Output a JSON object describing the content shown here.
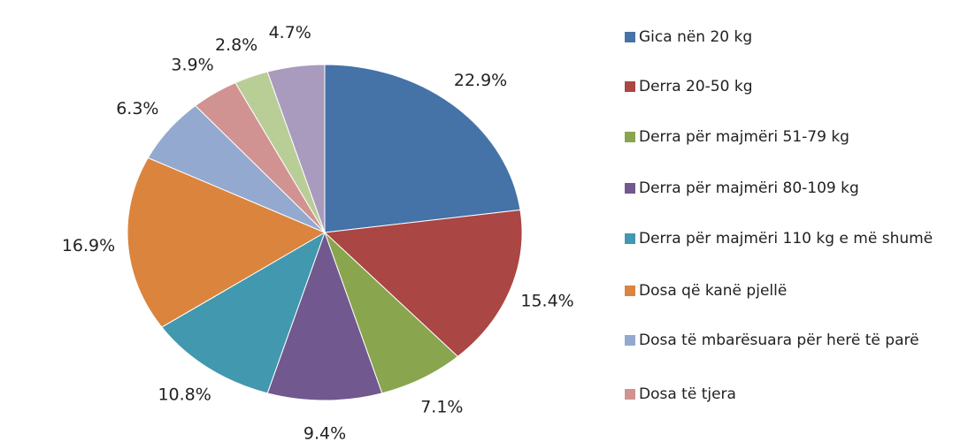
{
  "chart_data": {
    "type": "pie",
    "categories": [
      "Gica  nën 20 kg",
      "Derra  20-50 kg",
      "Derra për majmëri  51-79 kg",
      "Derra për majmëri  80-109 kg",
      "Derra për majmëri  110 kg e më shumë",
      "Dosa që kanë pjellë",
      "Dosa të mbarësuara për herë të parë",
      "Dosa të tjera",
      null,
      null
    ],
    "values": [
      22.9,
      15.4,
      7.1,
      9.4,
      10.8,
      16.9,
      6.3,
      3.9,
      2.8,
      4.7
    ],
    "value_labels": [
      "22.9%",
      "15.4%",
      "7.1%",
      "9.4%",
      "10.8%",
      "16.9%",
      "6.3%",
      "3.9%",
      "2.8%",
      "4.7%"
    ],
    "colors": [
      "#4572a7",
      "#aa4643",
      "#89a54e",
      "#71588f",
      "#4198af",
      "#db843d",
      "#93a9cf",
      "#d19392",
      "#b9cd96",
      "#a99bbd"
    ],
    "legend": "right"
  }
}
